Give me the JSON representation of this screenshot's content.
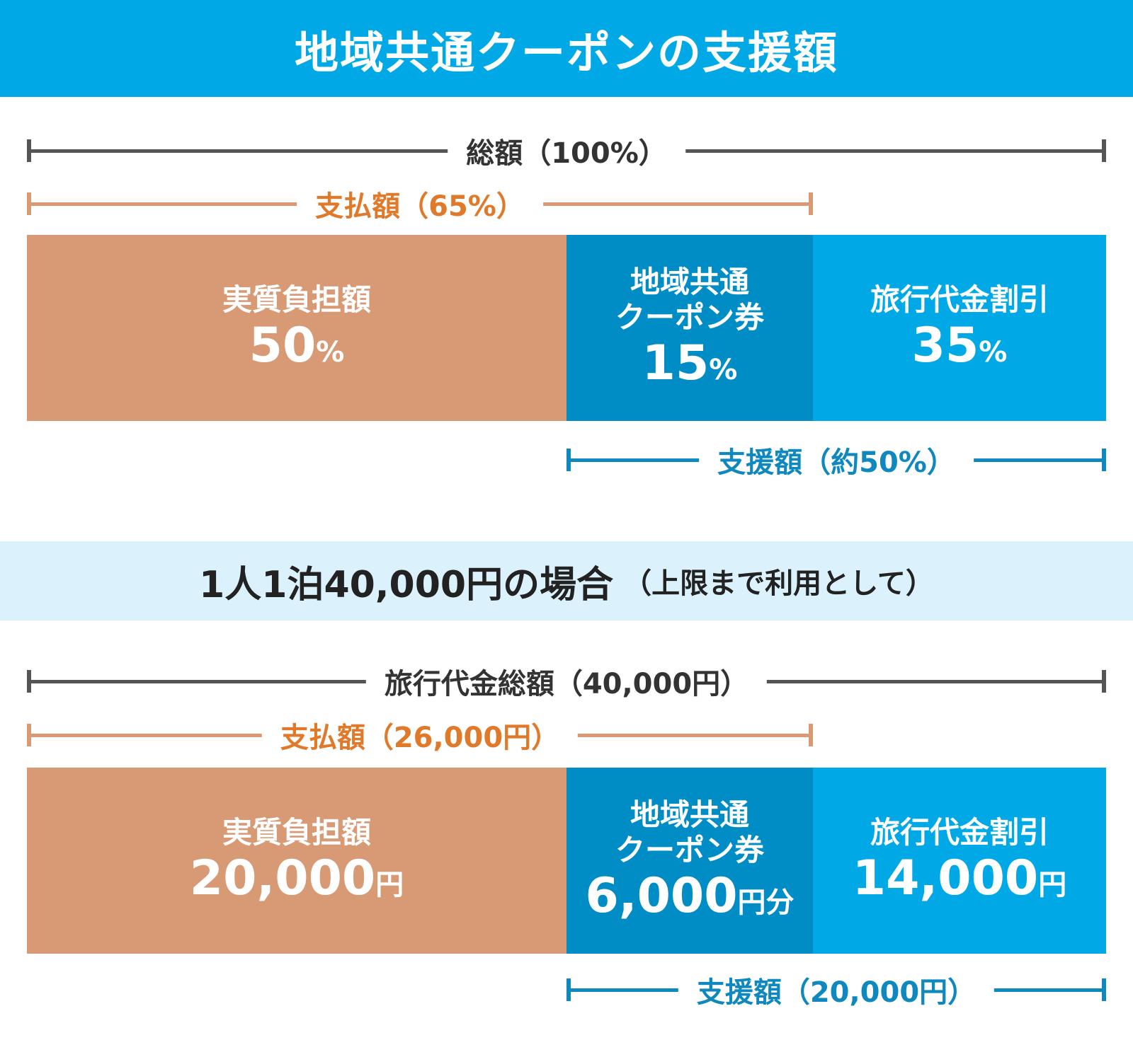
{
  "title": "地域共通クーポンの支援額",
  "colors": {
    "header_blue": "#00a9e6",
    "coupon_blue": "#008dc5",
    "own_orange": "#d89a74",
    "accent_orange": "#e07a2a",
    "subheader_bg": "#dbf2fc"
  },
  "top": {
    "total_label": "総額（100%）",
    "paid_label": "支払額（65%）",
    "support_label": "支援額（約50%）",
    "segments": [
      {
        "name": "実質負担額",
        "value": "50",
        "unit": "%"
      },
      {
        "name_line1": "地域共通",
        "name_line2": "クーポン券",
        "value": "15",
        "unit": "%"
      },
      {
        "name": "旅行代金割引",
        "value": "35",
        "unit": "%"
      }
    ]
  },
  "example": {
    "heading": "1人1泊40,000円の場合",
    "heading_note": "（上限まで利用として）",
    "total_label": "旅行代金総額（40,000円）",
    "paid_label": "支払額（26,000円）",
    "support_label": "支援額（20,000円）",
    "segments": [
      {
        "name": "実質負担額",
        "value": "20,000",
        "unit": "円"
      },
      {
        "name_line1": "地域共通",
        "name_line2": "クーポン券",
        "value": "6,000",
        "unit": "円分"
      },
      {
        "name": "旅行代金割引",
        "value": "14,000",
        "unit": "円"
      }
    ]
  }
}
